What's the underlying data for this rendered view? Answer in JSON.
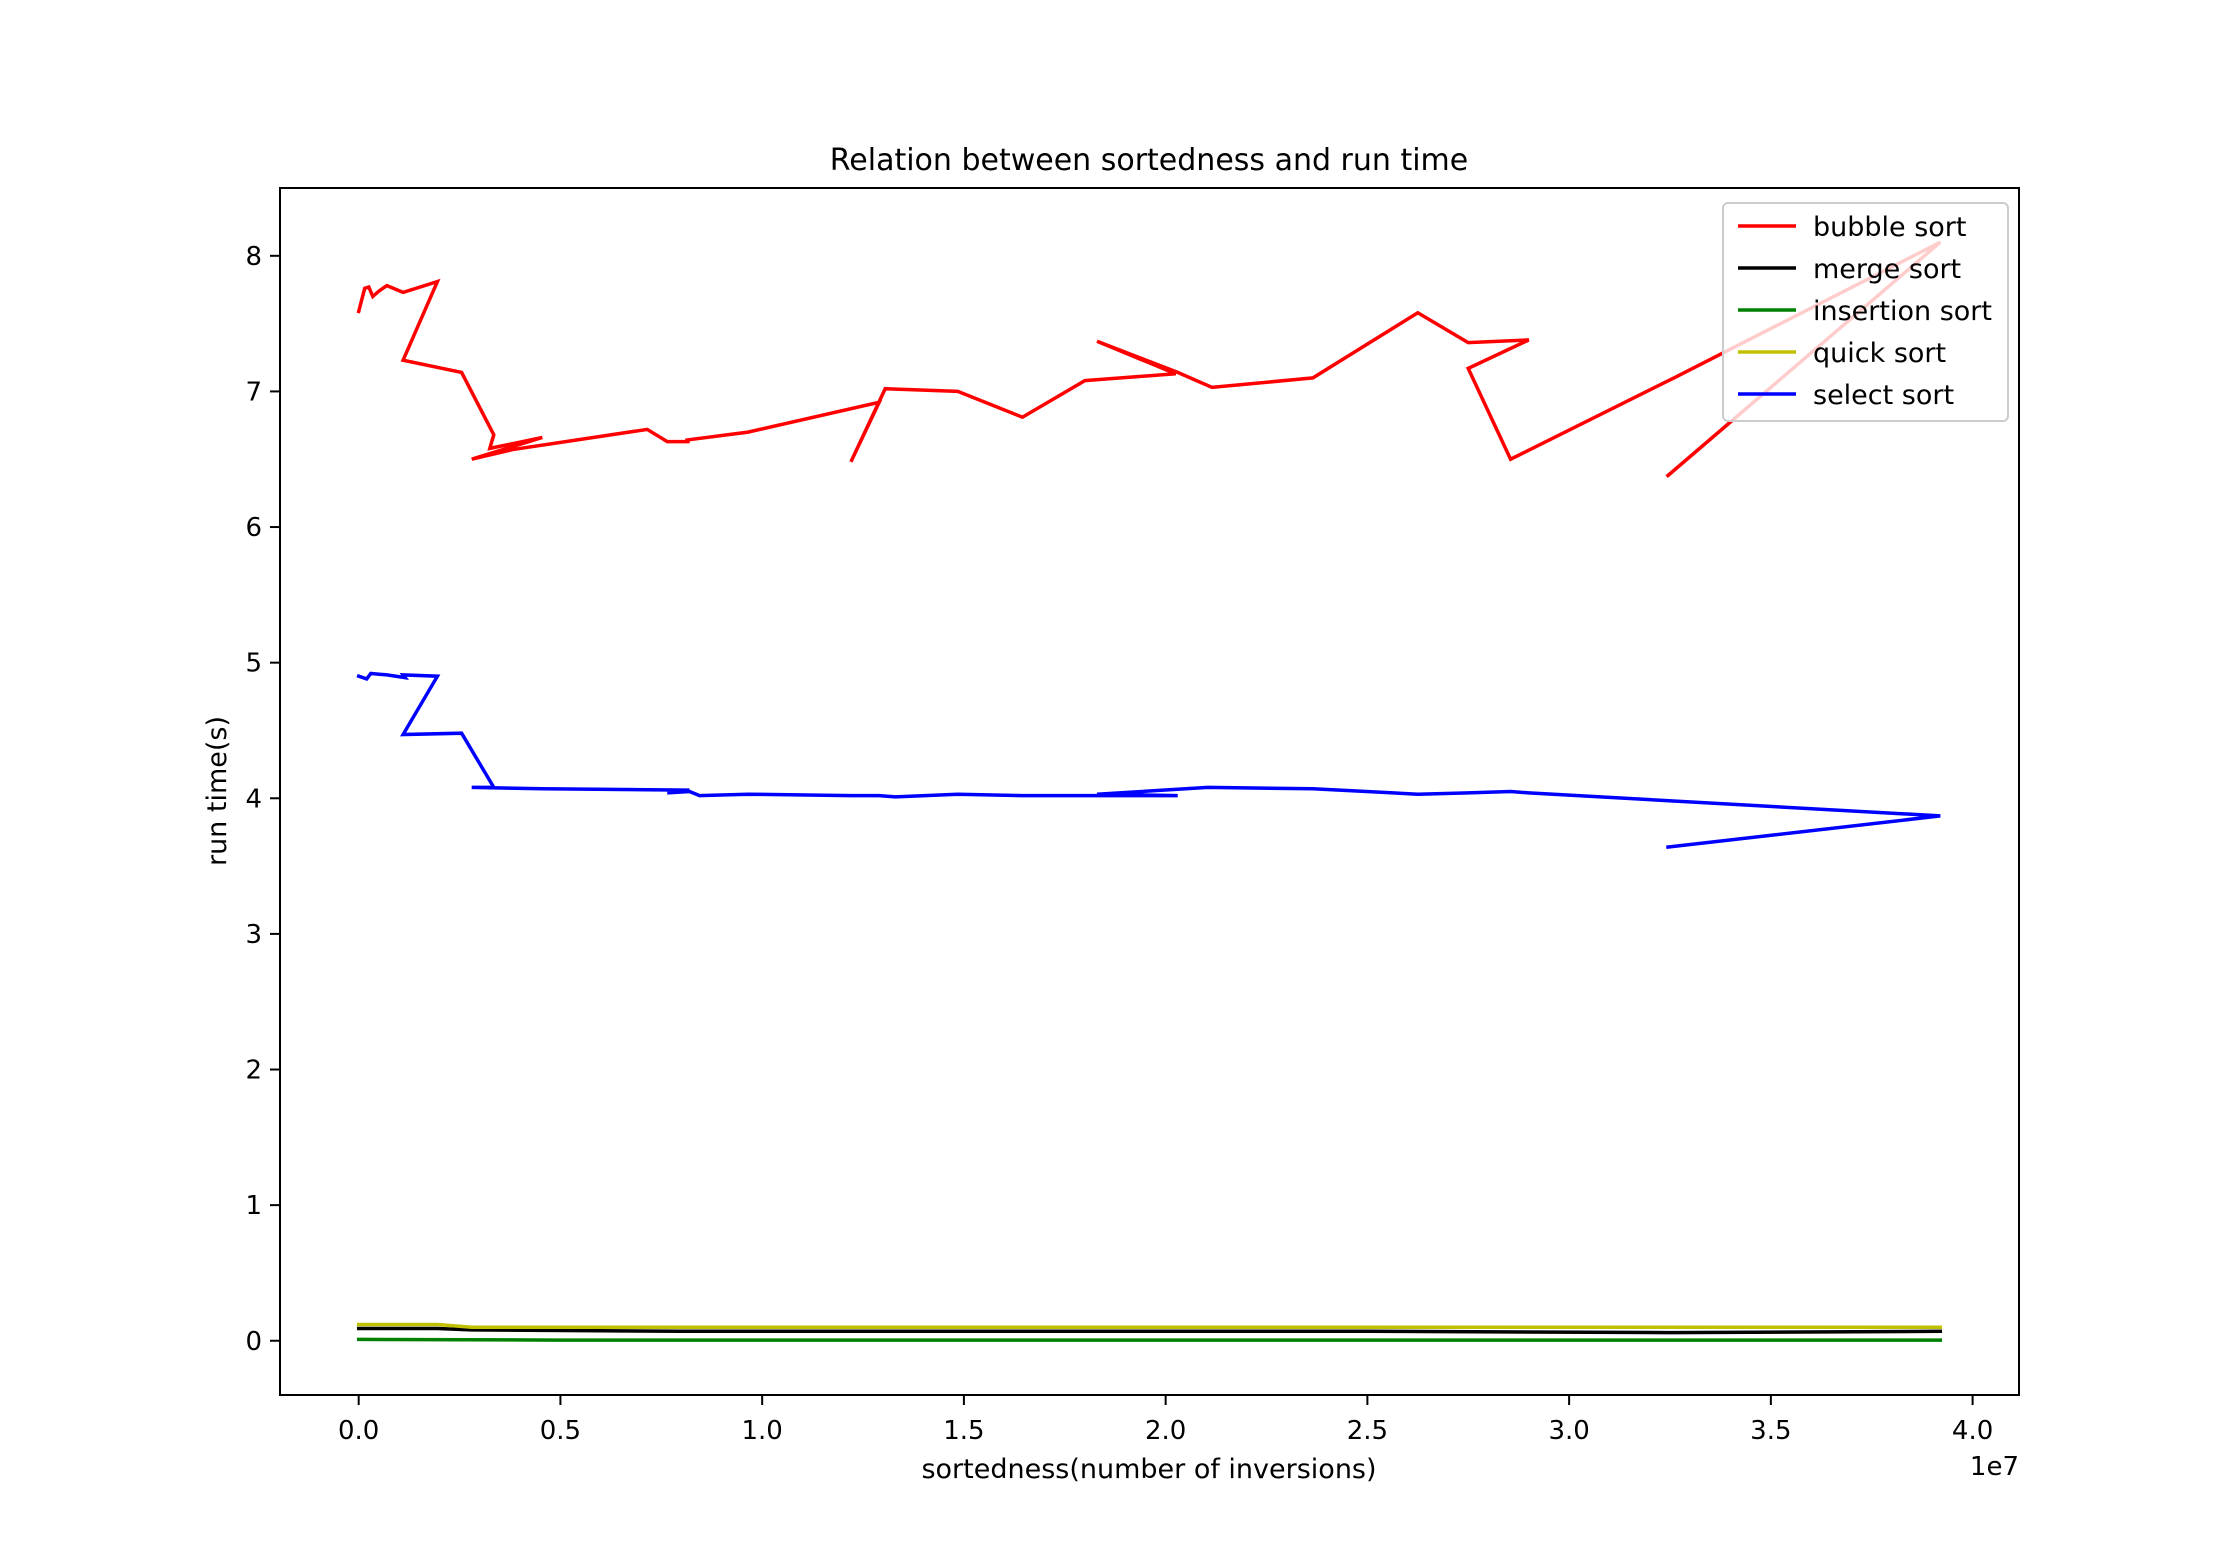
{
  "chart_data": {
    "type": "line",
    "title": "Relation between sortedness and run time",
    "xlabel": "sortedness(number of inversions)",
    "ylabel": "run time(s)",
    "x_offset_label": "1e7",
    "x_scale_factor": 10000000,
    "xlim": [
      -1950000,
      41150000
    ],
    "ylim": [
      -0.4,
      8.5
    ],
    "x_ticks": [
      0,
      5000000,
      10000000,
      15000000,
      20000000,
      25000000,
      30000000,
      35000000,
      40000000
    ],
    "x_tick_labels": [
      "0.0",
      "0.5",
      "1.0",
      "1.5",
      "2.0",
      "2.5",
      "3.0",
      "3.5",
      "4.0"
    ],
    "y_ticks": [
      0,
      1,
      2,
      3,
      4,
      5,
      6,
      7,
      8
    ],
    "y_tick_labels": [
      "0",
      "1",
      "2",
      "3",
      "4",
      "5",
      "6",
      "7",
      "8"
    ],
    "grid": false,
    "legend_position": "top-right",
    "series": [
      {
        "name": "bubble sort",
        "color": "#ff0000",
        "points": [
          [
            0,
            7.59
          ],
          [
            150000,
            7.76
          ],
          [
            250000,
            7.77
          ],
          [
            350000,
            7.7
          ],
          [
            500000,
            7.74
          ],
          [
            700000,
            7.78
          ],
          [
            1100000,
            7.73
          ],
          [
            1950000,
            7.81
          ],
          [
            1100000,
            7.23
          ],
          [
            2550000,
            7.14
          ],
          [
            3350000,
            6.68
          ],
          [
            3250000,
            6.58
          ],
          [
            4550000,
            6.66
          ],
          [
            2800000,
            6.5
          ],
          [
            3800000,
            6.57
          ],
          [
            7150000,
            6.72
          ],
          [
            7650000,
            6.63
          ],
          [
            8200000,
            6.63
          ],
          [
            8100000,
            6.64
          ],
          [
            9650000,
            6.7
          ],
          [
            12900000,
            6.92
          ],
          [
            12200000,
            6.48
          ],
          [
            13050000,
            7.02
          ],
          [
            14850000,
            7.0
          ],
          [
            16450000,
            6.81
          ],
          [
            18000000,
            7.08
          ],
          [
            20250000,
            7.13
          ],
          [
            18300000,
            7.37
          ],
          [
            20300000,
            7.14
          ],
          [
            21150000,
            7.03
          ],
          [
            23650000,
            7.1
          ],
          [
            26250000,
            7.58
          ],
          [
            27500000,
            7.36
          ],
          [
            29000000,
            7.38
          ],
          [
            27500000,
            7.17
          ],
          [
            28550000,
            6.5
          ],
          [
            32600000,
            7.1
          ],
          [
            39200000,
            8.1
          ],
          [
            32450000,
            6.38
          ]
        ]
      },
      {
        "name": "merge sort",
        "color": "#000000",
        "points": [
          [
            0,
            0.09
          ],
          [
            1950000,
            0.09
          ],
          [
            2800000,
            0.08
          ],
          [
            8000000,
            0.07
          ],
          [
            15000000,
            0.07
          ],
          [
            25000000,
            0.07
          ],
          [
            32500000,
            0.06
          ],
          [
            39200000,
            0.07
          ]
        ]
      },
      {
        "name": "insertion sort",
        "color": "#008000",
        "points": [
          [
            0,
            0.01
          ],
          [
            5000000,
            0.005
          ],
          [
            15000000,
            0.005
          ],
          [
            25000000,
            0.005
          ],
          [
            39200000,
            0.005
          ]
        ]
      },
      {
        "name": "quick sort",
        "color": "#c0c000",
        "points": [
          [
            0,
            0.12
          ],
          [
            1950000,
            0.12
          ],
          [
            2800000,
            0.1
          ],
          [
            10000000,
            0.1
          ],
          [
            20000000,
            0.1
          ],
          [
            30000000,
            0.1
          ],
          [
            39200000,
            0.1
          ]
        ]
      },
      {
        "name": "select sort",
        "color": "#0000ff",
        "points": [
          [
            0,
            4.9
          ],
          [
            200000,
            4.88
          ],
          [
            300000,
            4.92
          ],
          [
            700000,
            4.91
          ],
          [
            1150000,
            4.89
          ],
          [
            1100000,
            4.91
          ],
          [
            1950000,
            4.9
          ],
          [
            1100000,
            4.47
          ],
          [
            2550000,
            4.48
          ],
          [
            3350000,
            4.08
          ],
          [
            2800000,
            4.08
          ],
          [
            4550000,
            4.07
          ],
          [
            8200000,
            4.06
          ],
          [
            7650000,
            4.04
          ],
          [
            8200000,
            4.05
          ],
          [
            8450000,
            4.02
          ],
          [
            9650000,
            4.03
          ],
          [
            12200000,
            4.02
          ],
          [
            12900000,
            4.02
          ],
          [
            13300000,
            4.01
          ],
          [
            14850000,
            4.03
          ],
          [
            16450000,
            4.02
          ],
          [
            18050000,
            4.02
          ],
          [
            20300000,
            4.02
          ],
          [
            18300000,
            4.03
          ],
          [
            21050000,
            4.08
          ],
          [
            23650000,
            4.07
          ],
          [
            26250000,
            4.03
          ],
          [
            27500000,
            4.04
          ],
          [
            28550000,
            4.05
          ],
          [
            29000000,
            4.04
          ],
          [
            39200000,
            3.87
          ],
          [
            32450000,
            3.64
          ]
        ]
      }
    ]
  }
}
